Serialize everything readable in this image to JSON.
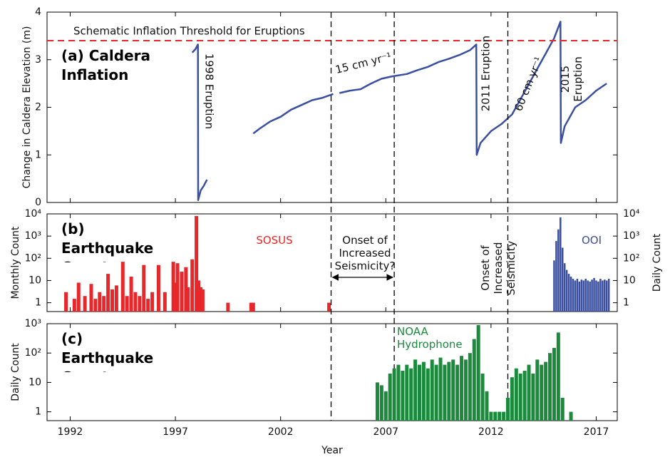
{
  "chart_data": [
    {
      "type": "line",
      "title": "(a) Caldera Inflation",
      "ylabel": "Change in Caldera Elevation (m)",
      "xlim": [
        1990.9,
        2018
      ],
      "xticks": [
        1992,
        1997,
        2002,
        2007,
        2012,
        2017
      ],
      "ylim": [
        0,
        4
      ],
      "yticks": [
        0,
        1,
        2,
        3,
        4
      ],
      "threshold": {
        "label": "Schematic Inflation Threshold for Eruptions",
        "value": 3.4,
        "color": "#e8272a"
      },
      "event_lines": [
        2004.4,
        2007.4,
        2012.8
      ],
      "annotations": [
        "1998 Eruption",
        "15 cm yr⁻¹",
        "2011 Eruption",
        "60 cm yr⁻¹",
        "2015 Eruption"
      ],
      "series": [
        {
          "color": "#3a4fa0",
          "x": [
            1997.8,
            1997.95,
            1998.07,
            1998.08,
            1998.2,
            1998.35,
            1998.5,
            1999.5,
            2000.7,
            2001,
            2001.5,
            2002,
            2002.5,
            2003,
            2003.5,
            2004,
            2004.5,
            2004.6,
            2004.8,
            2005.3,
            2005.8,
            2006.3,
            2006.8,
            2007.3,
            2008,
            2008.5,
            2009,
            2009.5,
            2010,
            2010.5,
            2011,
            2011.3,
            2011.32,
            2011.5,
            2012,
            2012.5,
            2013,
            2013.5,
            2014,
            2014.5,
            2015,
            2015.3,
            2015.32,
            2015.5,
            2016,
            2016.5,
            2017,
            2017.5
          ],
          "values": [
            3.15,
            3.22,
            3.32,
            0.05,
            0.25,
            0.35,
            0.48,
            null,
            1.45,
            1.55,
            1.7,
            1.8,
            1.95,
            2.05,
            2.15,
            2.2,
            2.28,
            null,
            2.3,
            2.35,
            2.38,
            2.5,
            2.6,
            2.65,
            2.7,
            2.78,
            2.85,
            2.95,
            3.02,
            3.1,
            3.2,
            3.32,
            1.0,
            1.25,
            1.5,
            1.65,
            1.85,
            2.25,
            2.65,
            3.05,
            3.45,
            3.8,
            1.25,
            1.6,
            2.0,
            2.15,
            2.35,
            2.5
          ]
        }
      ]
    },
    {
      "type": "bar",
      "title": "(b) Earthquake Counts",
      "ylabel": "Monthly Count",
      "y2label": "Daily Count",
      "log": true,
      "xlim": [
        1990.9,
        2018
      ],
      "xticks": [
        1992,
        1997,
        2002,
        2007,
        2012,
        2017
      ],
      "ylim": [
        0.4,
        10000
      ],
      "yticks": [
        1,
        10,
        {
          "value": 100,
          "label": "10²"
        },
        {
          "value": 1000,
          "label": "10³"
        },
        {
          "value": 10000,
          "label": "10⁴"
        }
      ],
      "y2lim": [
        0.4,
        10000
      ],
      "y2ticks": [
        1,
        10,
        {
          "value": 100,
          "label": "10²"
        },
        {
          "value": 1000,
          "label": "10³"
        },
        {
          "value": 10000,
          "label": "10⁴"
        }
      ],
      "annotations": [
        "Onset of Increased Seismicity?",
        "Onset of Increased Seismicity"
      ],
      "series": [
        {
          "name": "SOSUS",
          "color": "#e8272a",
          "x": [
            1991.8,
            1992.2,
            1992.4,
            1992.7,
            1993.0,
            1993.2,
            1993.4,
            1993.6,
            1993.8,
            1994.0,
            1994.2,
            1994.5,
            1994.7,
            1994.9,
            1995.1,
            1995.3,
            1995.5,
            1995.7,
            1995.9,
            1996.2,
            1996.5,
            1996.9,
            1997.0,
            1997.1,
            1997.3,
            1997.5,
            1997.6,
            1997.8,
            1998.0,
            1998.1,
            1998.2,
            1998.3,
            1999.5,
            2000.6,
            2000.7,
            2004.3
          ],
          "values": [
            3,
            1.5,
            8,
            2,
            7,
            1.5,
            3,
            2,
            20,
            4,
            6,
            70,
            2,
            15,
            3,
            2,
            50,
            1.5,
            3,
            50,
            3,
            70,
            8,
            60,
            25,
            40,
            5,
            90,
            8000,
            10,
            5,
            4,
            1,
            1,
            1,
            1
          ]
        },
        {
          "name": "OOI",
          "color": "#3a4fa0",
          "axis": "y2",
          "x": [
            2015.0,
            2015.1,
            2015.2,
            2015.3,
            2015.4,
            2015.5,
            2015.6,
            2015.7,
            2015.8,
            2015.9,
            2016.0,
            2016.1,
            2016.2,
            2016.3,
            2016.4,
            2016.5,
            2016.6,
            2016.7,
            2016.8,
            2016.9,
            2017.0,
            2017.1,
            2017.2,
            2017.3,
            2017.4,
            2017.5,
            2017.6
          ],
          "values": [
            80,
            600,
            2000,
            7000,
            300,
            60,
            30,
            20,
            15,
            12,
            10,
            12,
            9,
            11,
            10,
            12,
            10,
            9,
            11,
            13,
            10,
            9,
            12,
            10,
            11,
            10,
            12
          ]
        }
      ]
    },
    {
      "type": "bar",
      "title": "(c) Earthquake Counts",
      "ylabel": "Daily Count",
      "xlabel": "Year",
      "log": true,
      "xlim": [
        1990.9,
        2018
      ],
      "xticks": [
        1992,
        1997,
        2002,
        2007,
        2012,
        2017
      ],
      "ylim": [
        0.5,
        1000
      ],
      "yticks": [
        1,
        10,
        {
          "value": 100,
          "label": "10²"
        },
        {
          "value": 1000,
          "label": "10³"
        }
      ],
      "series": [
        {
          "name": "NOAA Hydrophone",
          "color": "#1b8a3c",
          "x": [
            2006.6,
            2006.8,
            2007.0,
            2007.2,
            2007.4,
            2007.6,
            2007.8,
            2008.0,
            2008.2,
            2008.4,
            2008.6,
            2008.8,
            2009.0,
            2009.2,
            2009.4,
            2009.6,
            2009.8,
            2010.0,
            2010.2,
            2010.4,
            2010.6,
            2010.8,
            2011.0,
            2011.2,
            2011.4,
            2011.6,
            2011.8,
            2012.0,
            2012.2,
            2012.4,
            2012.6,
            2012.8,
            2013.0,
            2013.2,
            2013.4,
            2013.6,
            2013.8,
            2014.0,
            2014.2,
            2014.4,
            2014.6,
            2014.8,
            2015.0,
            2015.2,
            2015.4,
            2015.8
          ],
          "values": [
            10,
            8,
            5,
            20,
            30,
            40,
            25,
            40,
            30,
            60,
            40,
            50,
            30,
            60,
            40,
            70,
            40,
            50,
            60,
            40,
            80,
            60,
            100,
            300,
            900,
            20,
            5,
            1,
            1,
            1,
            1,
            3,
            15,
            30,
            20,
            25,
            40,
            20,
            60,
            40,
            50,
            100,
            150,
            500,
            3,
            1
          ]
        }
      ]
    }
  ]
}
